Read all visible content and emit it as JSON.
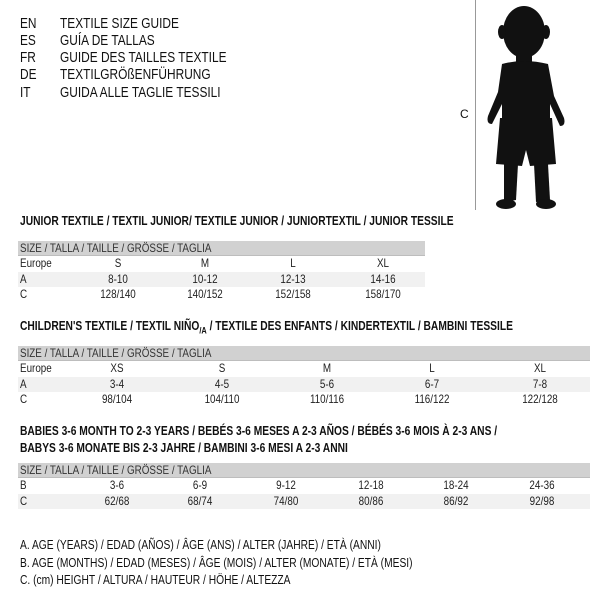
{
  "languages": [
    {
      "code": "EN",
      "text": "TEXTILE SIZE GUIDE"
    },
    {
      "code": "ES",
      "text": "GUÍA DE TALLAS"
    },
    {
      "code": "FR",
      "text": "GUIDE DES TAILLES TEXTILE"
    },
    {
      "code": "DE",
      "text": "TEXTILGRÖßENFÜHRUNG"
    },
    {
      "code": "IT",
      "text": "GUIDA ALLE TAGLIE TESSILI"
    }
  ],
  "figure": {
    "label": "C",
    "icon": "child-silhouette"
  },
  "junior": {
    "title": "JUNIOR TEXTILE / TEXTIL JUNIOR/ TEXTILE JUNIOR / JUNIORTEXTIL / JUNIOR TESSILE",
    "header": "SIZE / TALLA / TAILLE / GRÖSSE / TAGLIA",
    "rows": [
      {
        "label": "Europe",
        "cells": [
          "S",
          "M",
          "L",
          "XL"
        ]
      },
      {
        "label": "A",
        "cells": [
          "8-10",
          "10-12",
          "12-13",
          "14-16"
        ]
      },
      {
        "label": "C",
        "cells": [
          "128/140",
          "140/152",
          "152/158",
          "158/170"
        ]
      }
    ]
  },
  "children": {
    "title_main": "CHILDREN'S TEXTILE / TEXTIL NIÑO",
    "title_sub": "/A",
    "title_rest": " / TEXTILE DES ENFANTS / KINDERTEXTIL / BAMBINI TESSILE",
    "header": "SIZE / TALLA / TAILLE / GRÖSSE / TAGLIA",
    "rows": [
      {
        "label": "Europe",
        "cells": [
          "XS",
          "S",
          "M",
          "L",
          "XL"
        ]
      },
      {
        "label": "A",
        "cells": [
          "3-4",
          "4-5",
          "5-6",
          "6-7",
          "7-8"
        ]
      },
      {
        "label": "C",
        "cells": [
          "98/104",
          "104/110",
          "110/116",
          "116/122",
          "122/128"
        ]
      }
    ]
  },
  "babies": {
    "title_line1": "BABIES 3-6 MONTH TO 2-3 YEARS / BEBÉS 3-6 MESES A 2-3 AÑOS / BÉBÉS 3-6 MOIS À 2-3 ANS /",
    "title_line2": "BABYS 3-6 MONATE BIS 2-3 JAHRE / BAMBINI 3-6 MESI A 2-3 ANNI",
    "header": "SIZE / TALLA / TAILLE / GRÖSSE / TAGLIA",
    "rows": [
      {
        "label": "B",
        "cells": [
          "3-6",
          "6-9",
          "9-12",
          "12-18",
          "18-24",
          "24-36"
        ]
      },
      {
        "label": "C",
        "cells": [
          "62/68",
          "68/74",
          "74/80",
          "80/86",
          "86/92",
          "92/98"
        ]
      }
    ]
  },
  "legend": [
    "A. AGE (YEARS) / EDAD (AÑOS) / ÂGE (ANS) / ALTER (JAHRE) / ETÀ (ANNI)",
    "B. AGE (MONTHS) / EDAD (MESES) / ÂGE (MOIS) / ALTER (MONATE) / ETÀ (MESI)",
    "C. (cm) HEIGHT / ALTURA / HAUTEUR / HÖHE / ALTEZZA"
  ]
}
